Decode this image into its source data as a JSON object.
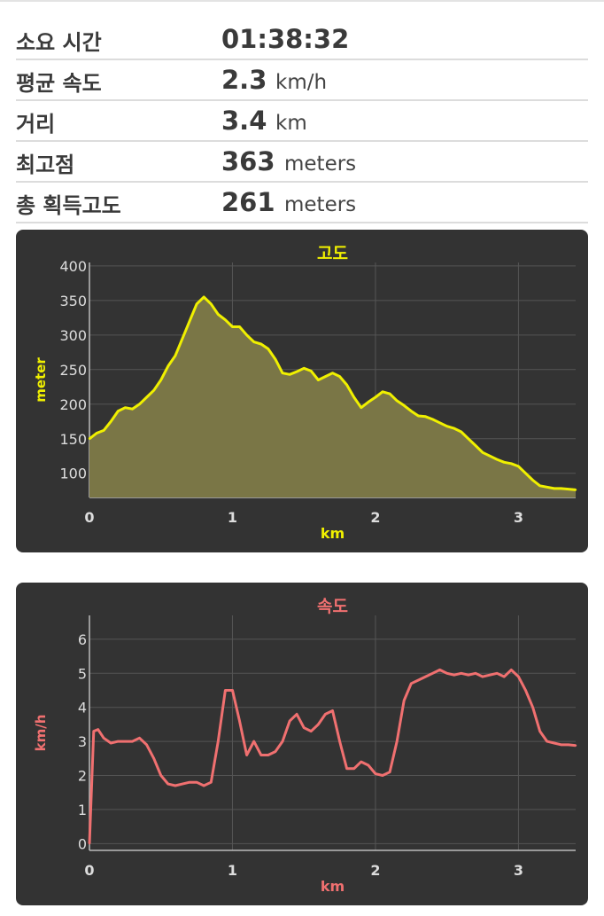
{
  "stats": [
    {
      "label": "소요 시간",
      "value": "01:38:32",
      "unit": ""
    },
    {
      "label": "평균 속도",
      "value": "2.3",
      "unit": "km/h"
    },
    {
      "label": "거리",
      "value": "3.4",
      "unit": "km"
    },
    {
      "label": "최고점",
      "value": "363",
      "unit": "meters"
    },
    {
      "label": "총 획득고도",
      "value": "261",
      "unit": "meters"
    }
  ],
  "charts": [
    {
      "id": "elevation",
      "type": "area",
      "title": "고도",
      "xlabel": "km",
      "ylabel": "meter",
      "xlim": [
        0,
        3.4
      ],
      "ylim": [
        65,
        405
      ],
      "xticks": [
        "0",
        "1",
        "2",
        "3"
      ],
      "yticks": [
        "100",
        "150",
        "200",
        "250",
        "300",
        "350",
        "400"
      ],
      "grid": true,
      "line_color": "#f0f000",
      "fill_color": "#7a7646",
      "label_color": "#f0f000",
      "x": [
        0,
        0.05,
        0.1,
        0.15,
        0.2,
        0.25,
        0.3,
        0.35,
        0.4,
        0.45,
        0.5,
        0.55,
        0.6,
        0.65,
        0.7,
        0.75,
        0.8,
        0.85,
        0.9,
        0.95,
        1.0,
        1.05,
        1.1,
        1.15,
        1.2,
        1.25,
        1.3,
        1.35,
        1.4,
        1.45,
        1.5,
        1.55,
        1.6,
        1.65,
        1.7,
        1.75,
        1.8,
        1.85,
        1.9,
        1.95,
        2.0,
        2.05,
        2.1,
        2.15,
        2.2,
        2.25,
        2.3,
        2.35,
        2.4,
        2.45,
        2.5,
        2.55,
        2.6,
        2.65,
        2.7,
        2.75,
        2.8,
        2.85,
        2.9,
        2.95,
        3.0,
        3.05,
        3.1,
        3.15,
        3.2,
        3.25,
        3.3,
        3.35,
        3.4
      ],
      "y": [
        150,
        158,
        162,
        175,
        190,
        195,
        193,
        200,
        210,
        220,
        235,
        255,
        270,
        295,
        320,
        345,
        355,
        345,
        330,
        322,
        312,
        312,
        300,
        290,
        287,
        280,
        265,
        245,
        243,
        247,
        252,
        248,
        235,
        240,
        245,
        240,
        228,
        210,
        195,
        203,
        210,
        218,
        215,
        205,
        198,
        190,
        183,
        182,
        178,
        173,
        168,
        165,
        160,
        150,
        140,
        130,
        125,
        120,
        116,
        114,
        110,
        100,
        90,
        82,
        80,
        78,
        78,
        77,
        76
      ]
    },
    {
      "id": "speed",
      "type": "line",
      "title": "속도",
      "xlabel": "km",
      "ylabel": "km/h",
      "xlim": [
        0,
        3.4
      ],
      "ylim": [
        -0.2,
        6.7
      ],
      "xticks": [
        "0",
        "1",
        "2",
        "3"
      ],
      "yticks": [
        "0",
        "1",
        "2",
        "3",
        "4",
        "5",
        "6"
      ],
      "grid": true,
      "line_color": "#f07070",
      "label_color": "#f07070",
      "x": [
        0,
        0.03,
        0.06,
        0.1,
        0.15,
        0.2,
        0.25,
        0.3,
        0.35,
        0.4,
        0.45,
        0.5,
        0.55,
        0.6,
        0.65,
        0.7,
        0.75,
        0.8,
        0.85,
        0.9,
        0.95,
        1.0,
        1.05,
        1.1,
        1.15,
        1.2,
        1.25,
        1.3,
        1.35,
        1.4,
        1.45,
        1.5,
        1.55,
        1.6,
        1.65,
        1.7,
        1.75,
        1.8,
        1.85,
        1.9,
        1.95,
        2.0,
        2.05,
        2.1,
        2.15,
        2.2,
        2.25,
        2.3,
        2.35,
        2.4,
        2.45,
        2.5,
        2.55,
        2.6,
        2.65,
        2.7,
        2.75,
        2.8,
        2.85,
        2.9,
        2.95,
        3.0,
        3.05,
        3.1,
        3.15,
        3.2,
        3.25,
        3.3,
        3.35,
        3.4
      ],
      "y": [
        0,
        3.3,
        3.35,
        3.1,
        2.95,
        3.0,
        3.0,
        3.0,
        3.1,
        2.9,
        2.5,
        2.0,
        1.75,
        1.7,
        1.75,
        1.8,
        1.8,
        1.7,
        1.8,
        3.0,
        4.5,
        4.5,
        3.6,
        2.6,
        3.0,
        2.6,
        2.6,
        2.7,
        3.0,
        3.6,
        3.8,
        3.4,
        3.3,
        3.5,
        3.8,
        3.9,
        3.0,
        2.2,
        2.2,
        2.4,
        2.3,
        2.05,
        2.0,
        2.1,
        3.0,
        4.2,
        4.7,
        4.8,
        4.9,
        5.0,
        5.1,
        5.0,
        4.95,
        5.0,
        4.95,
        5.0,
        4.9,
        4.95,
        5.0,
        4.9,
        5.1,
        4.9,
        4.5,
        4.0,
        3.3,
        3.0,
        2.95,
        2.9,
        2.9,
        2.88
      ]
    }
  ]
}
